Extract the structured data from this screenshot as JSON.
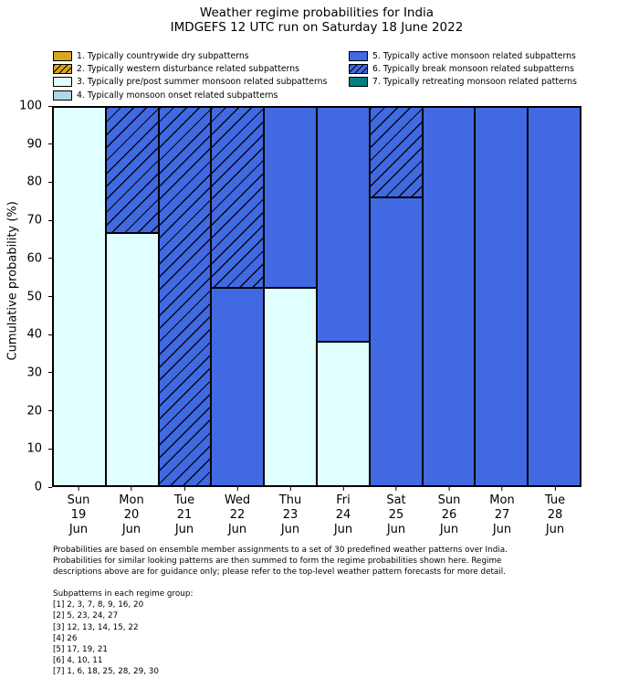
{
  "title": {
    "line1": "Weather regime probabilities for India",
    "line2": "IMDGEFS 12 UTC run on Saturday 18 June 2022"
  },
  "ylabel": "Cumulative probability (%)",
  "legend": {
    "left": [
      {
        "label": "1. Typically countrywide dry subpatterns",
        "color": "#DAA520",
        "hatch": false
      },
      {
        "label": "2. Typically western disturbance related subpatterns",
        "color": "#DAA520",
        "hatch": true
      },
      {
        "label": "3. Typically pre/post summer monsoon related subpatterns",
        "color": "#E0FFFF",
        "hatch": false
      },
      {
        "label": "4. Typically monsoon onset related subpatterns",
        "color": "#ADD8E6",
        "hatch": false
      }
    ],
    "right": [
      {
        "label": "5. Typically active monsoon related subpatterns",
        "color": "#4169E1",
        "hatch": false
      },
      {
        "label": "6. Typically break monsoon related subpatterns",
        "color": "#4169E1",
        "hatch": true
      },
      {
        "label": "7. Typically retreating monsoon related patterns",
        "color": "#008080",
        "hatch": false
      }
    ]
  },
  "chart_data": {
    "type": "bar",
    "stacked": true,
    "title": "Weather regime probabilities for India",
    "subtitle": "IMDGEFS 12 UTC run on Saturday 18 June 2022",
    "xlabel": "",
    "ylabel": "Cumulative probability (%)",
    "ylim": [
      0,
      100
    ],
    "yticks": [
      0,
      10,
      20,
      30,
      40,
      50,
      60,
      70,
      80,
      90,
      100
    ],
    "grid": false,
    "legend_position": "above plot, two columns",
    "categories": [
      {
        "day": "Sun",
        "date": "19",
        "month": "Jun"
      },
      {
        "day": "Mon",
        "date": "20",
        "month": "Jun"
      },
      {
        "day": "Tue",
        "date": "21",
        "month": "Jun"
      },
      {
        "day": "Wed",
        "date": "22",
        "month": "Jun"
      },
      {
        "day": "Thu",
        "date": "23",
        "month": "Jun"
      },
      {
        "day": "Fri",
        "date": "24",
        "month": "Jun"
      },
      {
        "day": "Sat",
        "date": "25",
        "month": "Jun"
      },
      {
        "day": "Sun",
        "date": "26",
        "month": "Jun"
      },
      {
        "day": "Mon",
        "date": "27",
        "month": "Jun"
      },
      {
        "day": "Tue",
        "date": "28",
        "month": "Jun"
      }
    ],
    "series": [
      {
        "regime": 3,
        "name": "3. Typically pre/post summer monsoon related subpatterns",
        "color": "#E0FFFF",
        "hatch": false,
        "values": [
          100,
          66.7,
          0,
          0,
          52.4,
          38.1,
          0,
          0,
          0,
          0
        ]
      },
      {
        "regime": 5,
        "name": "5. Typically active monsoon related subpatterns",
        "color": "#4169E1",
        "hatch": false,
        "values": [
          0,
          0,
          0,
          52.4,
          47.6,
          61.9,
          76.2,
          100,
          100,
          100
        ]
      },
      {
        "regime": 6,
        "name": "6. Typically break monsoon related subpatterns",
        "color": "#4169E1",
        "hatch": true,
        "values": [
          0,
          33.3,
          100,
          47.6,
          0,
          0,
          23.8,
          0,
          0,
          0
        ]
      }
    ]
  },
  "footer": {
    "lines": [
      "Probabilities are based on ensemble member assignments to a set of 30 predefined weather patterns over India.",
      "Probabilities for similar looking patterns are then summed to form the regime probabilities shown here. Regime",
      "descriptions above are for guidance only; please refer to the top-level weather pattern forecasts for more detail."
    ]
  },
  "subpatterns": {
    "heading": "Subpatterns in each regime group:",
    "groups": [
      "[1] 2, 3, 7, 8, 9, 16, 20",
      "[2] 5, 23, 24, 27",
      "[3] 12, 13, 14, 15, 22",
      "[4] 26",
      "[5] 17, 19, 21",
      "[6] 4, 10, 11",
      "[7] 1, 6, 18, 25, 28, 29, 30"
    ]
  }
}
